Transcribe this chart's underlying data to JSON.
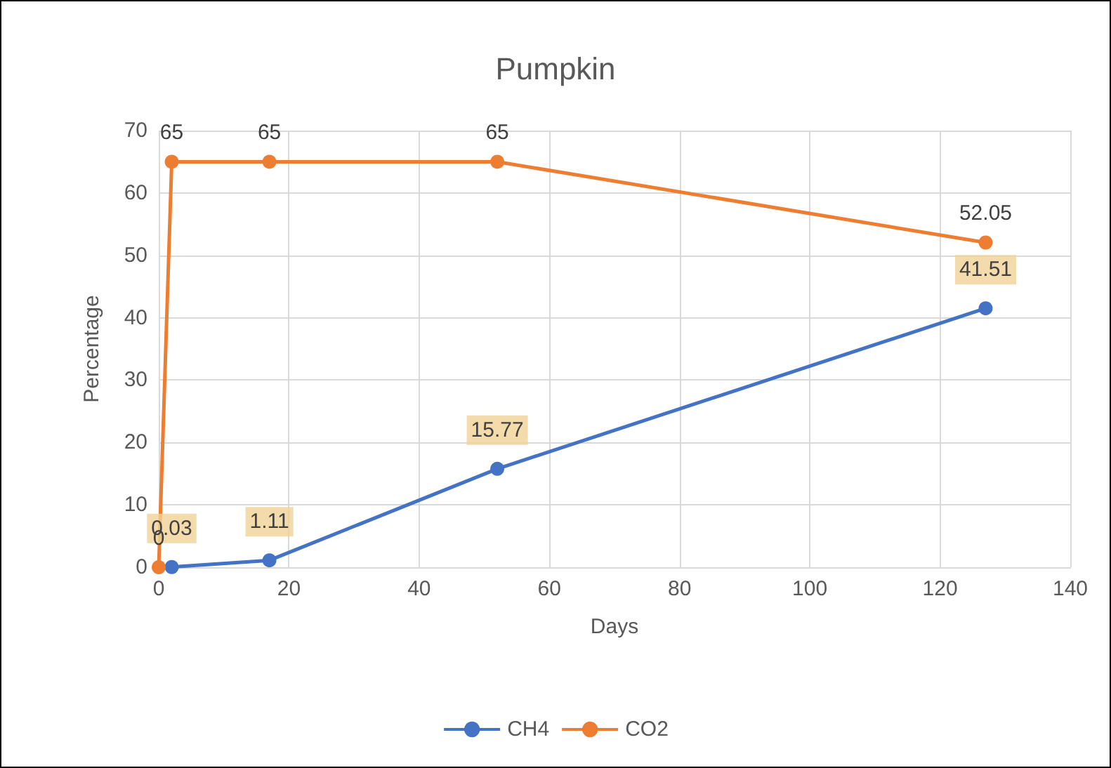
{
  "chart_data": {
    "type": "line",
    "title": "Pumpkin",
    "xlabel": "Days",
    "ylabel": "Percentage",
    "series": [
      {
        "name": "CH4",
        "color": "#4472c4",
        "x": [
          2,
          17,
          52,
          127
        ],
        "values": [
          0.03,
          1.11,
          15.77,
          41.51
        ]
      },
      {
        "name": "CO2",
        "color": "#ed7d31",
        "x": [
          0,
          2,
          17,
          52,
          127
        ],
        "values": [
          0,
          65,
          65,
          65,
          52.05
        ]
      }
    ],
    "xlim": [
      0,
      140
    ],
    "xticks": [
      0,
      20,
      40,
      60,
      80,
      100,
      120,
      140
    ],
    "ylim": [
      0,
      70
    ],
    "yticks": [
      0,
      10,
      20,
      30,
      40,
      50,
      60,
      70
    ],
    "grid": true,
    "legend": "bottom",
    "marker": "circle",
    "line_style": "solid",
    "data_labels": true
  }
}
